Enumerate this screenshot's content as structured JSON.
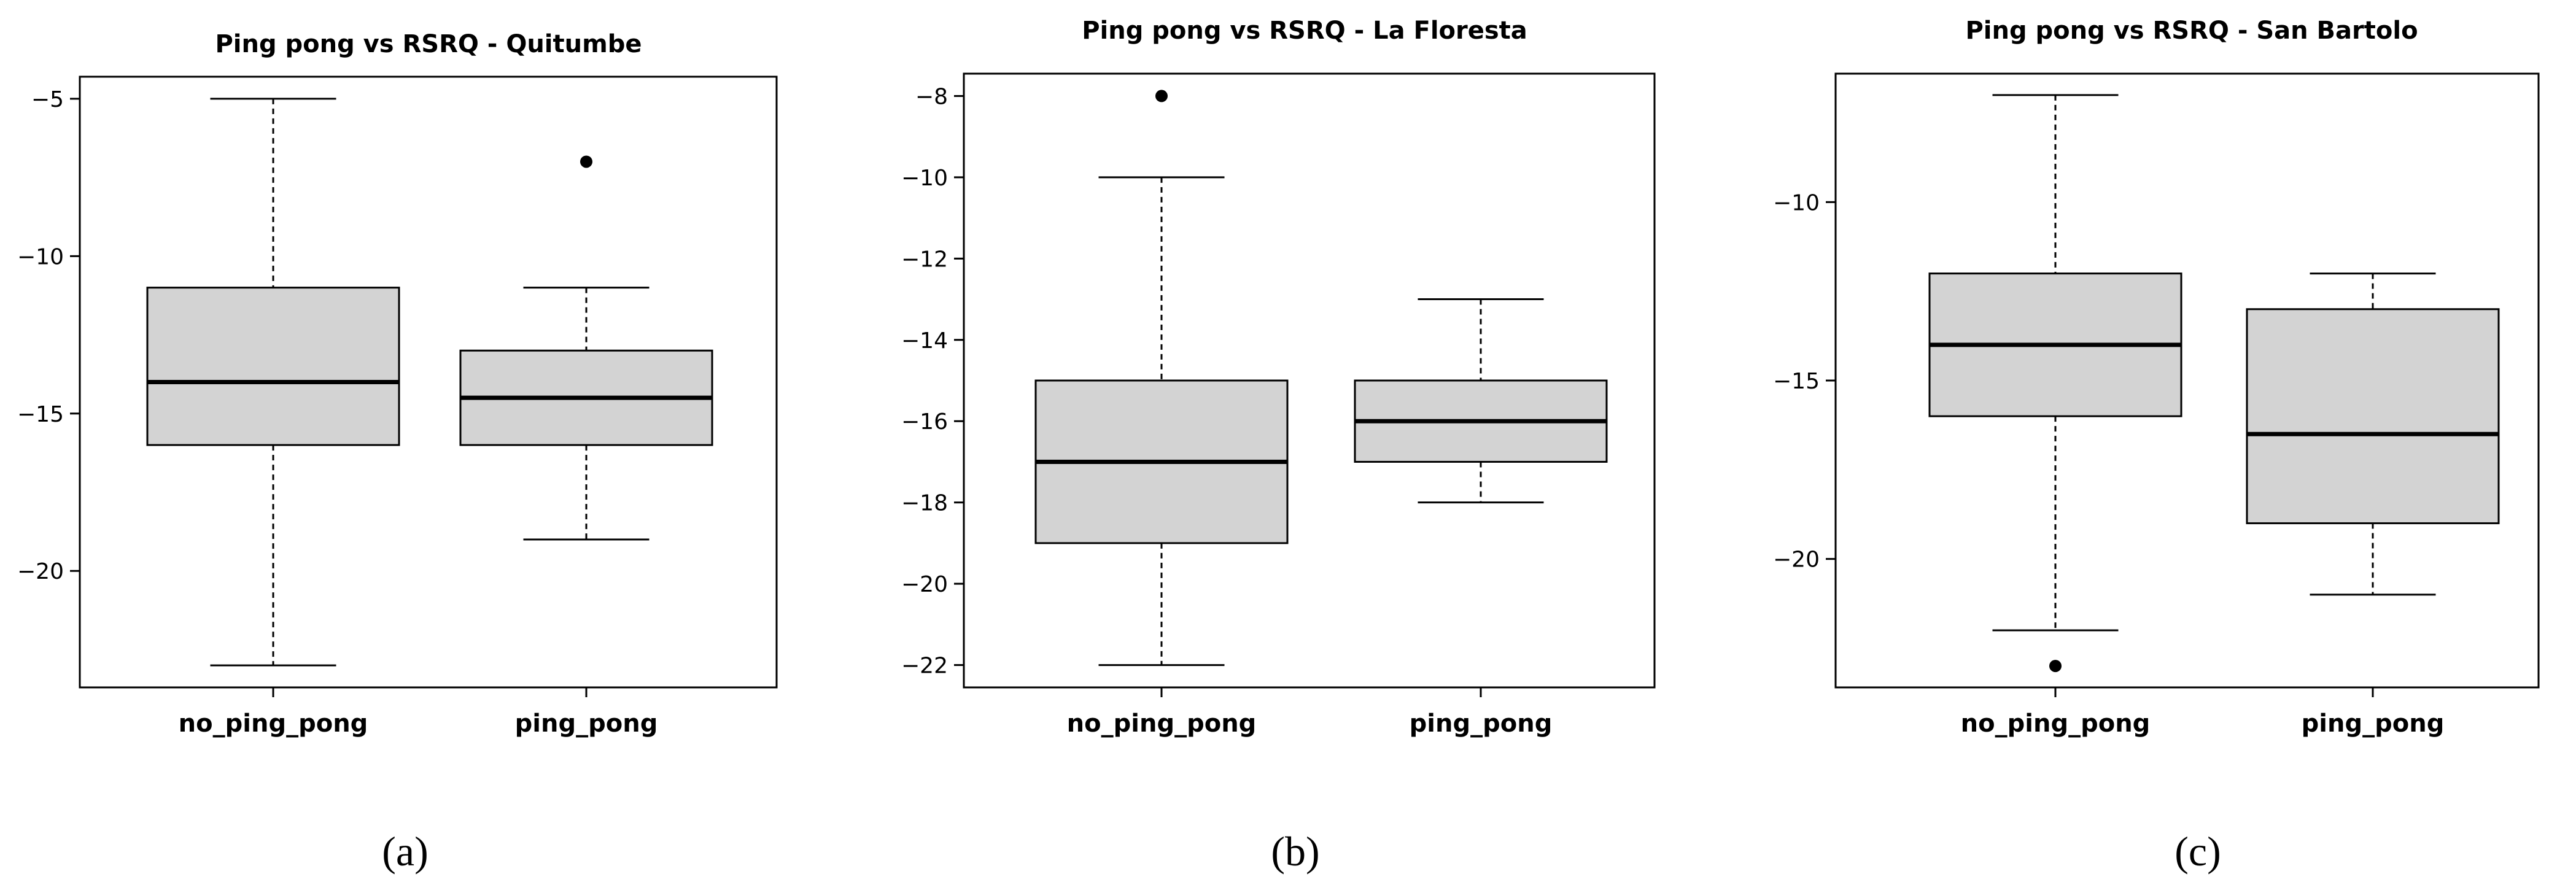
{
  "colors": {
    "box_fill": "#d3d3d3",
    "stroke": "#000000"
  },
  "chart_data": [
    {
      "type": "box",
      "title": "Ping pong vs RSRQ - Quitumbe",
      "panel_label": "(a)",
      "xlabel": "",
      "ylabel": "",
      "ylim": [
        -23.7,
        -4.3
      ],
      "yticks": [
        -5,
        -10,
        -15,
        -20
      ],
      "ytick_labels": [
        "−5",
        "−10",
        "−15",
        "−20"
      ],
      "grid": false,
      "categories": [
        "no_ping_pong",
        "ping_pong"
      ],
      "boxes": [
        {
          "label": "no_ping_pong",
          "whisker_low": -23,
          "q1": -16,
          "median": -14,
          "q3": -11,
          "whisker_high": -5,
          "outliers": []
        },
        {
          "label": "ping_pong",
          "whisker_low": -19,
          "q1": -16,
          "median": -14.5,
          "q3": -13,
          "whisker_high": -11,
          "outliers": [
            -7
          ]
        }
      ]
    },
    {
      "type": "box",
      "title": "Ping pong vs RSRQ - La Floresta",
      "panel_label": "(b)",
      "xlabel": "",
      "ylabel": "",
      "ylim": [
        -22.55,
        -7.45
      ],
      "yticks": [
        -8,
        -10,
        -12,
        -14,
        -16,
        -18,
        -20,
        -22
      ],
      "ytick_labels": [
        "−8",
        "−10",
        "−12",
        "−14",
        "−16",
        "−18",
        "−20",
        "−22"
      ],
      "grid": false,
      "categories": [
        "no_ping_pong",
        "ping_pong"
      ],
      "boxes": [
        {
          "label": "no_ping_pong",
          "whisker_low": -22,
          "q1": -19,
          "median": -17,
          "q3": -15,
          "whisker_high": -10,
          "outliers": [
            -8
          ]
        },
        {
          "label": "ping_pong",
          "whisker_low": -18,
          "q1": -17,
          "median": -16,
          "q3": -15,
          "whisker_high": -13,
          "outliers": []
        }
      ]
    },
    {
      "type": "box",
      "title": "Ping pong vs RSRQ - San Bartolo",
      "panel_label": "(c)",
      "xlabel": "",
      "ylabel": "",
      "ylim": [
        -23.6,
        -6.4
      ],
      "yticks": [
        -10,
        -15,
        -20
      ],
      "ytick_labels": [
        "−10",
        "−15",
        "−20"
      ],
      "grid": false,
      "categories": [
        "no_ping_pong",
        "ping_pong"
      ],
      "boxes": [
        {
          "label": "no_ping_pong",
          "whisker_low": -22,
          "q1": -16,
          "median": -14,
          "q3": -12,
          "whisker_high": -7,
          "outliers": [
            -23
          ]
        },
        {
          "label": "ping_pong",
          "whisker_low": -21,
          "q1": -19,
          "median": -16.5,
          "q3": -13,
          "whisker_high": -12,
          "outliers": []
        }
      ]
    }
  ]
}
